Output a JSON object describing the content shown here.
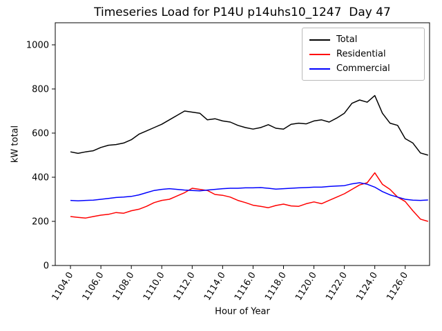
{
  "chart_data": {
    "type": "line",
    "title": "Timeseries Load for P14U p14uhs10_1247  Day 47",
    "xlabel": "Hour of Year",
    "ylabel": "kW total",
    "grid": false,
    "legend_position": "upper right",
    "xlim": [
      1103.0,
      1127.6
    ],
    "ylim": [
      0,
      1100
    ],
    "xticks": [
      1104,
      1106,
      1108,
      1110,
      1112,
      1114,
      1116,
      1118,
      1120,
      1122,
      1124,
      1126
    ],
    "xtick_labels": [
      "1104.0",
      "1106.0",
      "1108.0",
      "1110.0",
      "1112.0",
      "1114.0",
      "1116.0",
      "1118.0",
      "1120.0",
      "1122.0",
      "1124.0",
      "1126.0"
    ],
    "yticks": [
      0,
      200,
      400,
      600,
      800,
      1000
    ],
    "ytick_labels": [
      "0",
      "200",
      "400",
      "600",
      "800",
      "1000"
    ],
    "x": [
      1104,
      1104.5,
      1105,
      1105.5,
      1106,
      1106.5,
      1107,
      1107.5,
      1108,
      1108.5,
      1109,
      1109.5,
      1110,
      1110.5,
      1111,
      1111.5,
      1112,
      1112.5,
      1113,
      1113.5,
      1114,
      1114.5,
      1115,
      1115.5,
      1116,
      1116.5,
      1117,
      1117.5,
      1118,
      1118.5,
      1119,
      1119.5,
      1120,
      1120.5,
      1121,
      1121.5,
      1122,
      1122.5,
      1123,
      1123.5,
      1124,
      1124.5,
      1125,
      1125.5,
      1126,
      1126.5,
      1127,
      1127.5
    ],
    "series": [
      {
        "name": "Total",
        "color": "#000000",
        "values": [
          515,
          508,
          515,
          520,
          535,
          545,
          548,
          555,
          570,
          595,
          610,
          625,
          640,
          660,
          680,
          700,
          695,
          690,
          660,
          665,
          655,
          650,
          635,
          625,
          618,
          625,
          638,
          622,
          618,
          640,
          645,
          642,
          655,
          660,
          650,
          668,
          690,
          735,
          750,
          740,
          770,
          690,
          645,
          635,
          575,
          555,
          510,
          500
        ]
      },
      {
        "name": "Residential",
        "color": "#ff0000",
        "values": [
          222,
          218,
          215,
          222,
          228,
          232,
          240,
          237,
          248,
          255,
          268,
          285,
          295,
          300,
          315,
          330,
          350,
          345,
          340,
          322,
          318,
          310,
          295,
          285,
          273,
          268,
          262,
          272,
          278,
          270,
          268,
          280,
          288,
          280,
          295,
          310,
          325,
          345,
          365,
          375,
          420,
          368,
          345,
          310,
          290,
          248,
          210,
          200
        ]
      },
      {
        "name": "Commercial",
        "color": "#0000ff",
        "values": [
          295,
          293,
          295,
          296,
          300,
          304,
          308,
          310,
          313,
          320,
          330,
          340,
          345,
          348,
          345,
          342,
          340,
          338,
          342,
          345,
          348,
          350,
          350,
          352,
          352,
          353,
          350,
          346,
          348,
          350,
          352,
          353,
          355,
          355,
          358,
          360,
          362,
          370,
          375,
          368,
          355,
          335,
          320,
          310,
          300,
          296,
          295,
          297
        ]
      }
    ]
  }
}
